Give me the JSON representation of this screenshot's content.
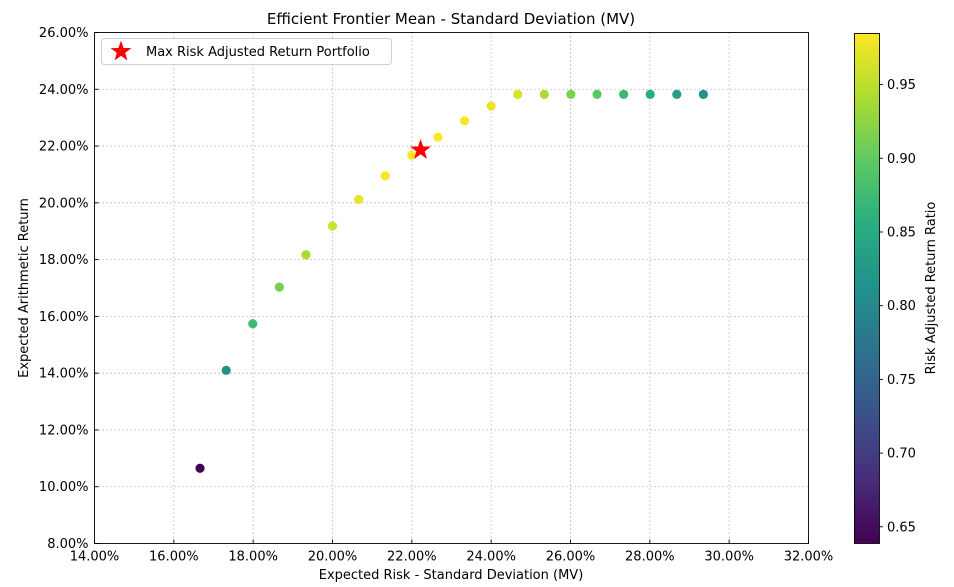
{
  "chart_data": {
    "type": "scatter",
    "title": "Efficient Frontier Mean - Standard Deviation (MV)",
    "xlabel": "Expected Risk - Standard Deviation (MV)",
    "ylabel": "Expected Arithmetic Return",
    "xlim": [
      0.14,
      0.32
    ],
    "ylim": [
      0.08,
      0.26
    ],
    "xticks": [
      "14.00%",
      "16.00%",
      "18.00%",
      "20.00%",
      "22.00%",
      "24.00%",
      "26.00%",
      "28.00%",
      "30.00%",
      "32.00%"
    ],
    "yticks": [
      "8.00%",
      "10.00%",
      "12.00%",
      "14.00%",
      "16.00%",
      "18.00%",
      "20.00%",
      "22.00%",
      "24.00%",
      "26.00%"
    ],
    "grid": true,
    "series": [
      {
        "name": "Efficient Frontier",
        "points": [
          {
            "x": 0.1666,
            "y": 0.1065,
            "ratio": 0.639
          },
          {
            "x": 0.1732,
            "y": 0.141,
            "ratio": 0.814
          },
          {
            "x": 0.1799,
            "y": 0.1574,
            "ratio": 0.875
          },
          {
            "x": 0.1866,
            "y": 0.1703,
            "ratio": 0.912
          },
          {
            "x": 0.1933,
            "y": 0.1817,
            "ratio": 0.94
          },
          {
            "x": 0.2,
            "y": 0.1918,
            "ratio": 0.959
          },
          {
            "x": 0.2066,
            "y": 0.2012,
            "ratio": 0.973
          },
          {
            "x": 0.2133,
            "y": 0.2095,
            "ratio": 0.982
          },
          {
            "x": 0.22,
            "y": 0.2168,
            "ratio": 0.985
          },
          {
            "x": 0.2266,
            "y": 0.2231,
            "ratio": 0.984
          },
          {
            "x": 0.2333,
            "y": 0.2289,
            "ratio": 0.981
          },
          {
            "x": 0.24,
            "y": 0.2341,
            "ratio": 0.975
          },
          {
            "x": 0.2467,
            "y": 0.2382,
            "ratio": 0.965
          },
          {
            "x": 0.2534,
            "y": 0.2382,
            "ratio": 0.94
          },
          {
            "x": 0.2601,
            "y": 0.2382,
            "ratio": 0.915
          },
          {
            "x": 0.2667,
            "y": 0.2382,
            "ratio": 0.893
          },
          {
            "x": 0.2734,
            "y": 0.2382,
            "ratio": 0.872
          },
          {
            "x": 0.2801,
            "y": 0.2382,
            "ratio": 0.851
          },
          {
            "x": 0.2868,
            "y": 0.2382,
            "ratio": 0.831
          },
          {
            "x": 0.2935,
            "y": 0.2382,
            "ratio": 0.812
          }
        ]
      }
    ],
    "highlight": {
      "label": "Max Risk Adjusted Return Portfolio",
      "x": 0.2222,
      "y": 0.2186,
      "marker": "star",
      "color": "#ff0000"
    },
    "legend_position": "top-left",
    "colorbar": {
      "label": "Risk Adjusted Return Ratio",
      "range": [
        0.639,
        0.985
      ],
      "ticks": [
        0.65,
        0.7,
        0.75,
        0.8,
        0.85,
        0.9,
        0.95
      ],
      "tick_labels": [
        "0.65",
        "0.70",
        "0.75",
        "0.80",
        "0.85",
        "0.90",
        "0.95"
      ],
      "colormap": "viridis"
    }
  }
}
